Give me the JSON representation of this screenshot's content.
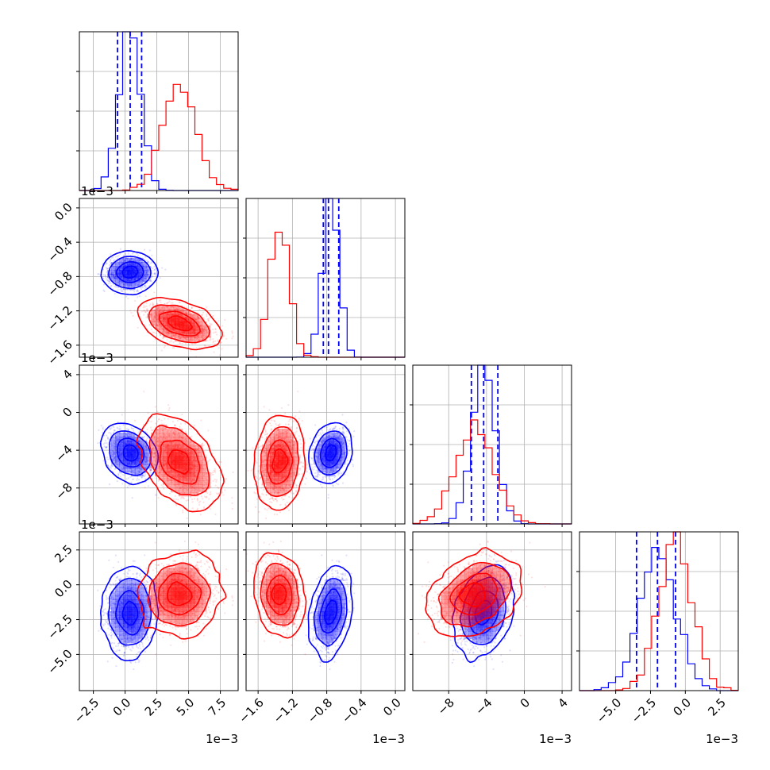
{
  "figure": {
    "type": "corner-plot"
  },
  "colors": {
    "blue": "#0000ff",
    "red": "#ff0000",
    "grid": "#b0b0b0"
  },
  "chart_data": {
    "type": "corner",
    "params": [
      {
        "scale": 0.001,
        "lim": [
          -3.6,
          8.9
        ],
        "ticks": [
          -2.5,
          0.0,
          2.5,
          5.0,
          7.5
        ],
        "tick_labels": [
          "−2.5",
          "0.0",
          "2.5",
          "5.0",
          "7.5"
        ],
        "offset": "1e−3"
      },
      {
        "scale": 0.001,
        "lim": [
          -1.74,
          0.11
        ],
        "ticks": [
          -1.6,
          -1.2,
          -0.8,
          -0.4,
          0.0
        ],
        "tick_labels": [
          "−1.6",
          "−1.2",
          "−0.8",
          "−0.4",
          "0.0"
        ],
        "offset": "1e−3"
      },
      {
        "scale": 0.001,
        "lim": [
          -11.8,
          5.0
        ],
        "ticks": [
          -8,
          -4,
          0,
          4
        ],
        "tick_labels": [
          "−8",
          "−4",
          "0",
          "4"
        ],
        "offset": "1e−3"
      },
      {
        "scale": 0.001,
        "lim": [
          -7.6,
          3.8
        ],
        "ticks": [
          -5.0,
          -2.5,
          0.0,
          2.5
        ],
        "tick_labels": [
          "−5.0",
          "−2.5",
          "0.0",
          "2.5"
        ],
        "offset": "1e−3"
      }
    ],
    "series": [
      {
        "color": "#0000ff",
        "mean": [
          0.4,
          -0.75,
          -4.3,
          -2.0
        ],
        "std": [
          0.85,
          0.09,
          1.2,
          1.3
        ],
        "corr": [
          [
            1,
            0,
            -0.25,
            0
          ],
          [
            0,
            1,
            0.2,
            0.3
          ],
          [
            -0.25,
            0.2,
            1,
            0.25
          ],
          [
            0,
            0.3,
            0.25,
            1
          ]
        ],
        "quantiles": [
          [
            -0.6,
            0.4,
            1.3
          ],
          [
            -0.84,
            -0.78,
            -0.66
          ],
          [
            -5.6,
            -4.3,
            -2.8
          ],
          [
            -3.5,
            -2.0,
            -0.7
          ]
        ]
      },
      {
        "color": "#ff0000",
        "mean": [
          4.3,
          -1.35,
          -5.2,
          -0.7
        ],
        "std": [
          1.3,
          0.11,
          2.0,
          1.2
        ],
        "corr": [
          [
            1,
            -0.45,
            -0.45,
            0.1
          ],
          [
            -0.45,
            1,
            0.15,
            -0.2
          ],
          [
            -0.45,
            0.15,
            1,
            0.3
          ],
          [
            0.1,
            -0.2,
            0.3,
            1
          ]
        ],
        "quantiles": []
      }
    ],
    "grid": true
  }
}
